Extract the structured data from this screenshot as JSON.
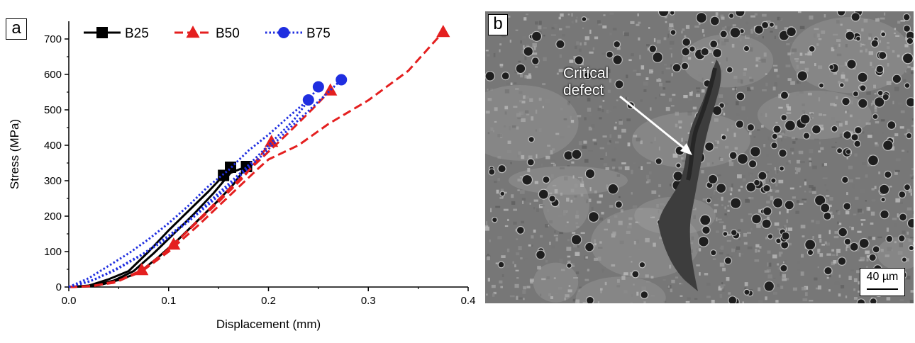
{
  "chart_data": {
    "type": "line",
    "panel_label": "a",
    "xlabel": "Displacement (mm)",
    "ylabel": "Stress (MPa)",
    "xlim": [
      0,
      0.4
    ],
    "ylim": [
      0,
      750
    ],
    "xticks": [
      0.0,
      0.1,
      0.2,
      0.3,
      0.4
    ],
    "xtick_labels": [
      "0.0",
      "0.1",
      "0.2",
      "0.3",
      "0.4"
    ],
    "yticks": [
      0,
      100,
      200,
      300,
      400,
      500,
      600,
      700
    ],
    "ytick_labels": [
      "0",
      "100",
      "200",
      "300",
      "400",
      "500",
      "600",
      "700"
    ],
    "legend_position": "top",
    "series": [
      {
        "name": "B25",
        "color": "#000000",
        "marker": "square",
        "linestyle": "solid",
        "curves": [
          [
            [
              0,
              0
            ],
            [
              0.02,
              2
            ],
            [
              0.045,
              18
            ],
            [
              0.065,
              45
            ],
            [
              0.085,
              95
            ],
            [
              0.105,
              150
            ],
            [
              0.125,
              205
            ],
            [
              0.145,
              265
            ],
            [
              0.162,
              322
            ],
            [
              0.178,
              340
            ]
          ],
          [
            [
              0,
              0
            ],
            [
              0.02,
              4
            ],
            [
              0.04,
              22
            ],
            [
              0.06,
              45
            ],
            [
              0.08,
              100
            ],
            [
              0.1,
              160
            ],
            [
              0.12,
              215
            ],
            [
              0.14,
              270
            ],
            [
              0.155,
              315
            ]
          ],
          [
            [
              0,
              0
            ],
            [
              0.03,
              5
            ],
            [
              0.05,
              20
            ],
            [
              0.07,
              40
            ],
            [
              0.09,
              85
            ],
            [
              0.11,
              135
            ],
            [
              0.13,
              190
            ],
            [
              0.15,
              245
            ],
            [
              0.165,
              290
            ],
            [
              0.178,
              340
            ]
          ]
        ],
        "failure_points": [
          [
            0.155,
            315
          ],
          [
            0.162,
            338
          ],
          [
            0.178,
            340
          ]
        ]
      },
      {
        "name": "B50",
        "color": "#e41f1f",
        "marker": "triangle",
        "linestyle": "dashed",
        "curves": [
          [
            [
              0,
              0
            ],
            [
              0.025,
              3
            ],
            [
              0.05,
              18
            ],
            [
              0.075,
              50
            ],
            [
              0.1,
              105
            ],
            [
              0.13,
              190
            ],
            [
              0.16,
              275
            ],
            [
              0.19,
              355
            ],
            [
              0.22,
              435
            ],
            [
              0.245,
              505
            ],
            [
              0.262,
              555
            ]
          ],
          [
            [
              0,
              0
            ],
            [
              0.025,
              3
            ],
            [
              0.05,
              17
            ],
            [
              0.075,
              48
            ],
            [
              0.1,
              100
            ],
            [
              0.13,
              175
            ],
            [
              0.16,
              255
            ],
            [
              0.19,
              335
            ],
            [
              0.2,
              360
            ],
            [
              0.23,
              400
            ],
            [
              0.26,
              460
            ],
            [
              0.3,
              527
            ],
            [
              0.34,
              610
            ],
            [
              0.375,
              720
            ]
          ],
          [
            [
              0,
              0
            ],
            [
              0.02,
              2
            ],
            [
              0.045,
              12
            ],
            [
              0.07,
              40
            ],
            [
              0.095,
              95
            ],
            [
              0.12,
              160
            ],
            [
              0.15,
              240
            ],
            [
              0.175,
              310
            ],
            [
              0.203,
              410
            ]
          ]
        ],
        "failure_points": [
          [
            0.073,
            48
          ],
          [
            0.105,
            120
          ],
          [
            0.203,
            410
          ],
          [
            0.262,
            555
          ],
          [
            0.375,
            720
          ]
        ]
      },
      {
        "name": "B75",
        "color": "#1f2ee0",
        "marker": "circle",
        "linestyle": "dotted",
        "curves": [
          [
            [
              0,
              0
            ],
            [
              0.02,
              25
            ],
            [
              0.04,
              60
            ],
            [
              0.06,
              95
            ],
            [
              0.08,
              135
            ],
            [
              0.1,
              180
            ],
            [
              0.12,
              230
            ],
            [
              0.14,
              285
            ],
            [
              0.16,
              330
            ],
            [
              0.18,
              385
            ],
            [
              0.2,
              430
            ],
            [
              0.22,
              480
            ],
            [
              0.24,
              528
            ]
          ],
          [
            [
              0,
              0
            ],
            [
              0.025,
              20
            ],
            [
              0.05,
              55
            ],
            [
              0.075,
              95
            ],
            [
              0.1,
              145
            ],
            [
              0.125,
              200
            ],
            [
              0.15,
              265
            ],
            [
              0.175,
              330
            ],
            [
              0.2,
              400
            ],
            [
              0.225,
              470
            ],
            [
              0.25,
              565
            ]
          ],
          [
            [
              0,
              0
            ],
            [
              0.02,
              15
            ],
            [
              0.045,
              45
            ],
            [
              0.07,
              85
            ],
            [
              0.095,
              130
            ],
            [
              0.12,
              185
            ],
            [
              0.145,
              245
            ],
            [
              0.17,
              310
            ],
            [
              0.195,
              375
            ],
            [
              0.22,
              445
            ],
            [
              0.245,
              510
            ],
            [
              0.273,
              585
            ]
          ]
        ],
        "failure_points": [
          [
            0.24,
            528
          ],
          [
            0.25,
            565
          ],
          [
            0.273,
            585
          ]
        ]
      }
    ]
  },
  "micrograph": {
    "panel_label": "b",
    "annotation": "Critical\ndefect",
    "scale_bar_label": "40 µm"
  },
  "colors": {
    "axis": "#000000",
    "micrograph_background": "#6f6f6f",
    "annotation_text": "#ffffff"
  }
}
